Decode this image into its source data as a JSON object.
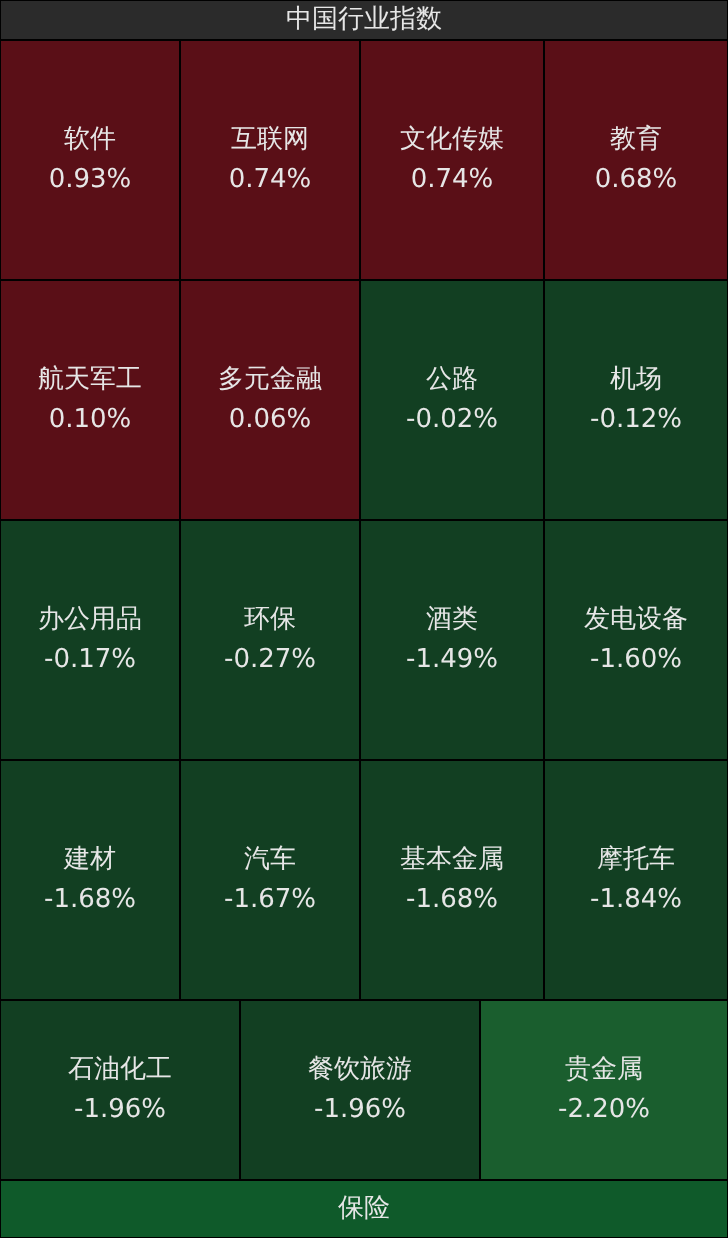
{
  "chart_data": {
    "type": "other",
    "title": "中国行业指数",
    "categories": [
      "软件",
      "互联网",
      "文化传媒",
      "教育",
      "航天军工",
      "多元金融",
      "公路",
      "机场",
      "办公用品",
      "环保",
      "酒类",
      "发电设备",
      "建材",
      "汽车",
      "基本金属",
      "摩托车",
      "石油化工",
      "餐饮旅游",
      "贵金属",
      "保险"
    ],
    "values": [
      0.93,
      0.74,
      0.74,
      0.68,
      0.1,
      0.06,
      -0.02,
      -0.12,
      -0.17,
      -0.27,
      -1.49,
      -1.6,
      -1.68,
      -1.67,
      -1.68,
      -1.84,
      -1.96,
      -1.96,
      -2.2,
      null
    ],
    "value_labels": [
      "0.93%",
      "0.74%",
      "0.74%",
      "0.68%",
      "0.10%",
      "0.06%",
      "-0.02%",
      "-0.12%",
      "-0.17%",
      "-0.27%",
      "-1.49%",
      "-1.60%",
      "-1.68%",
      "-1.67%",
      "-1.68%",
      "-1.84%",
      "-1.96%",
      "-1.96%",
      "-2.20%",
      null
    ],
    "colors": [
      "#5a0f17",
      "#5a0f17",
      "#5a0f17",
      "#5a0f17",
      "#5a0f17",
      "#5a0f17",
      "#123f22",
      "#123f22",
      "#123f22",
      "#123f22",
      "#123f22",
      "#123f22",
      "#123f22",
      "#123f22",
      "#123f22",
      "#123f22",
      "#123f22",
      "#123f22",
      "#1a5e2e",
      "#0f5a2a"
    ]
  }
}
